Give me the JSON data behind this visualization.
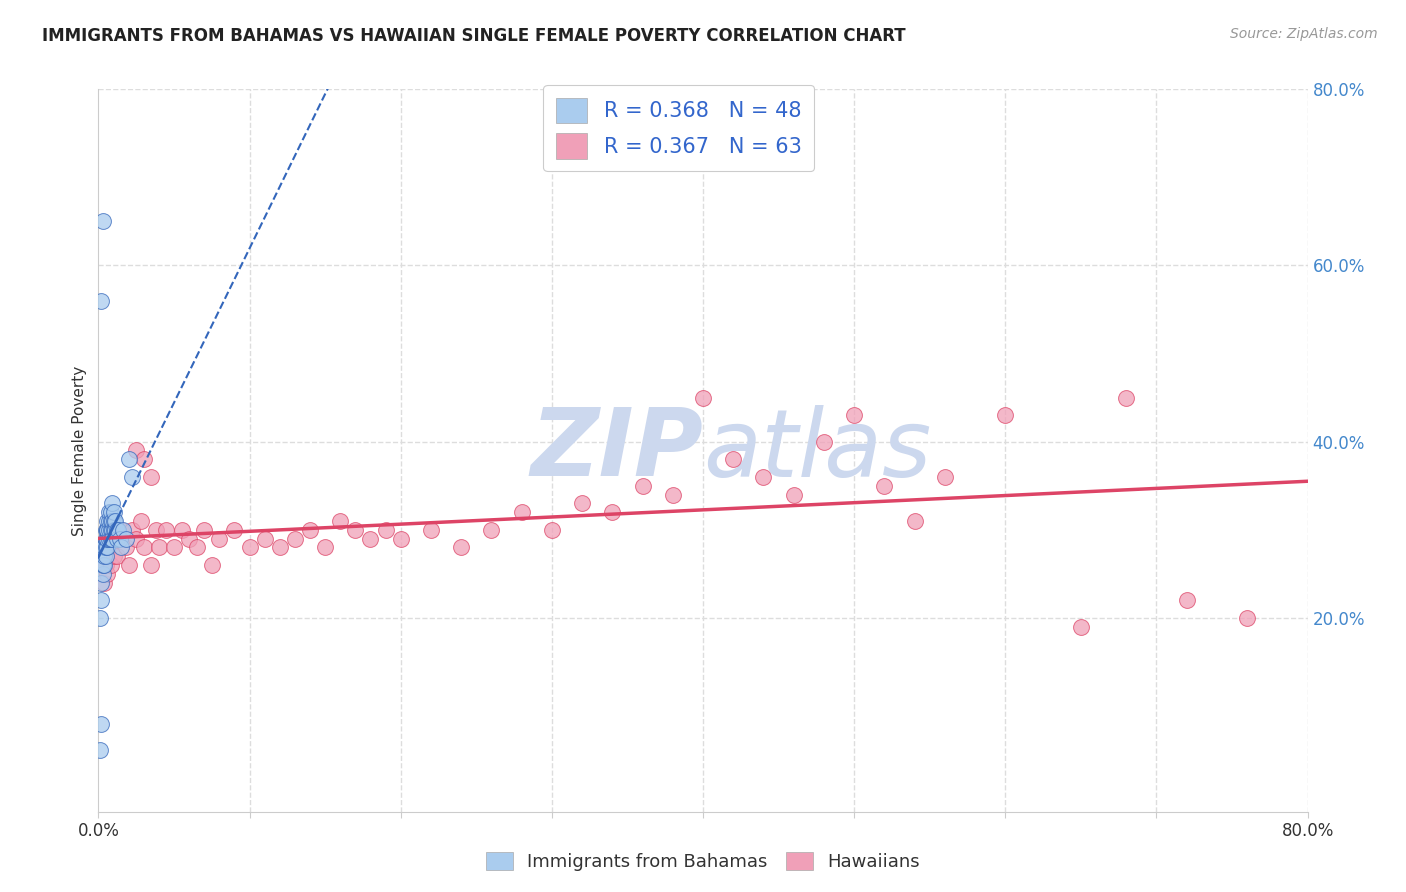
{
  "title": "IMMIGRANTS FROM BAHAMAS VS HAWAIIAN SINGLE FEMALE POVERTY CORRELATION CHART",
  "source": "Source: ZipAtlas.com",
  "ylabel": "Single Female Poverty",
  "legend_label1": "Immigrants from Bahamas",
  "legend_label2": "Hawaiians",
  "R1": 0.368,
  "N1": 48,
  "R2": 0.367,
  "N2": 63,
  "xlim": [
    0.0,
    0.8
  ],
  "ylim": [
    -0.02,
    0.8
  ],
  "color_blue": "#aaccee",
  "color_pink": "#f0a0b8",
  "color_trend_blue": "#3366bb",
  "color_trend_pink": "#dd4466",
  "watermark_color": "#ccd8ee",
  "background_color": "#ffffff",
  "grid_color": "#dddddd",
  "blue_x": [
    0.001,
    0.002,
    0.002,
    0.003,
    0.003,
    0.003,
    0.004,
    0.004,
    0.004,
    0.005,
    0.005,
    0.005,
    0.005,
    0.006,
    0.006,
    0.006,
    0.006,
    0.006,
    0.007,
    0.007,
    0.007,
    0.007,
    0.008,
    0.008,
    0.008,
    0.008,
    0.009,
    0.009,
    0.009,
    0.009,
    0.01,
    0.01,
    0.01,
    0.011,
    0.011,
    0.012,
    0.012,
    0.013,
    0.014,
    0.015,
    0.016,
    0.018,
    0.02,
    0.022,
    0.002,
    0.003,
    0.001,
    0.002
  ],
  "blue_y": [
    0.2,
    0.22,
    0.24,
    0.25,
    0.26,
    0.28,
    0.26,
    0.27,
    0.28,
    0.27,
    0.28,
    0.29,
    0.3,
    0.28,
    0.29,
    0.3,
    0.31,
    0.3,
    0.29,
    0.3,
    0.31,
    0.32,
    0.3,
    0.31,
    0.29,
    0.32,
    0.3,
    0.31,
    0.29,
    0.33,
    0.31,
    0.3,
    0.32,
    0.3,
    0.31,
    0.3,
    0.29,
    0.3,
    0.29,
    0.28,
    0.3,
    0.29,
    0.38,
    0.36,
    0.56,
    0.65,
    0.05,
    0.08
  ],
  "pink_x": [
    0.004,
    0.005,
    0.006,
    0.007,
    0.008,
    0.01,
    0.012,
    0.015,
    0.018,
    0.02,
    0.022,
    0.025,
    0.028,
    0.03,
    0.035,
    0.038,
    0.04,
    0.045,
    0.05,
    0.055,
    0.06,
    0.065,
    0.07,
    0.075,
    0.08,
    0.09,
    0.1,
    0.11,
    0.12,
    0.13,
    0.14,
    0.15,
    0.16,
    0.17,
    0.18,
    0.19,
    0.2,
    0.22,
    0.24,
    0.26,
    0.28,
    0.3,
    0.32,
    0.34,
    0.36,
    0.38,
    0.4,
    0.42,
    0.44,
    0.46,
    0.48,
    0.5,
    0.52,
    0.54,
    0.56,
    0.6,
    0.65,
    0.68,
    0.72,
    0.76,
    0.025,
    0.03,
    0.035
  ],
  "pink_y": [
    0.24,
    0.26,
    0.25,
    0.28,
    0.26,
    0.27,
    0.27,
    0.3,
    0.28,
    0.26,
    0.3,
    0.29,
    0.31,
    0.28,
    0.26,
    0.3,
    0.28,
    0.3,
    0.28,
    0.3,
    0.29,
    0.28,
    0.3,
    0.26,
    0.29,
    0.3,
    0.28,
    0.29,
    0.28,
    0.29,
    0.3,
    0.28,
    0.31,
    0.3,
    0.29,
    0.3,
    0.29,
    0.3,
    0.28,
    0.3,
    0.32,
    0.3,
    0.33,
    0.32,
    0.35,
    0.34,
    0.45,
    0.38,
    0.36,
    0.34,
    0.4,
    0.43,
    0.35,
    0.31,
    0.36,
    0.43,
    0.19,
    0.45,
    0.22,
    0.2,
    0.39,
    0.38,
    0.36
  ]
}
